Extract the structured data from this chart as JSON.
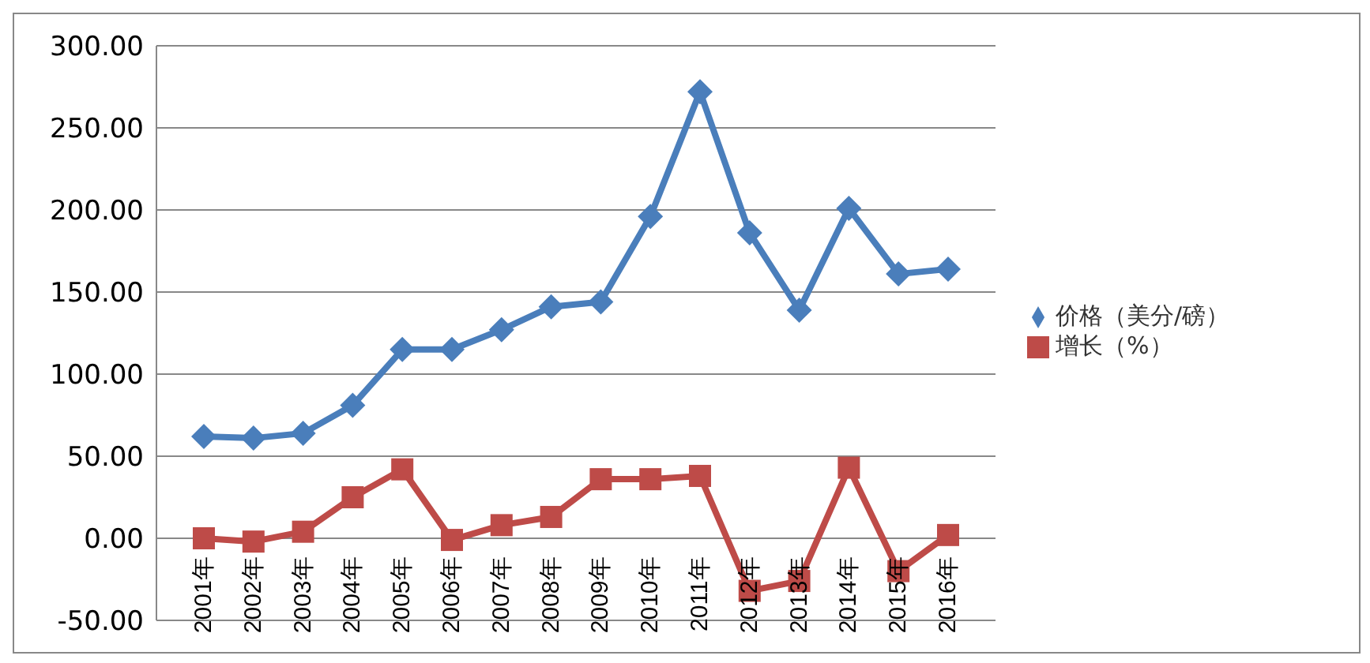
{
  "chart_data": {
    "type": "line",
    "categories": [
      "2001年",
      "2002年",
      "2003年",
      "2004年",
      "2005年",
      "2006年",
      "2007年",
      "2008年",
      "2009年",
      "2010年",
      "2011年",
      "2012年",
      "2013年",
      "2014年",
      "2015年",
      "2016年"
    ],
    "series": [
      {
        "name": "价格（美分/磅）",
        "color": "#4a7ebb",
        "marker": "diamond",
        "values": [
          62,
          61,
          64,
          81,
          115,
          115,
          127,
          141,
          144,
          196,
          272,
          186,
          139,
          201,
          161,
          164
        ]
      },
      {
        "name": "增长（%）",
        "color": "#be4b48",
        "marker": "square",
        "values": [
          0,
          -2,
          4,
          25,
          42,
          -1,
          8,
          13,
          36,
          36,
          38,
          -32,
          -26,
          43,
          -20,
          2
        ]
      }
    ],
    "ylim": [
      -50,
      300
    ],
    "yticks": [
      {
        "value": -50,
        "label": "-50.00"
      },
      {
        "value": 0,
        "label": "0.00"
      },
      {
        "value": 50,
        "label": "50.00"
      },
      {
        "value": 100,
        "label": "100.00"
      },
      {
        "value": 150,
        "label": "150.00"
      },
      {
        "value": 200,
        "label": "200.00"
      },
      {
        "value": 250,
        "label": "250.00"
      },
      {
        "value": 300,
        "label": "300.00"
      }
    ],
    "grid": "y",
    "legend": "right"
  }
}
